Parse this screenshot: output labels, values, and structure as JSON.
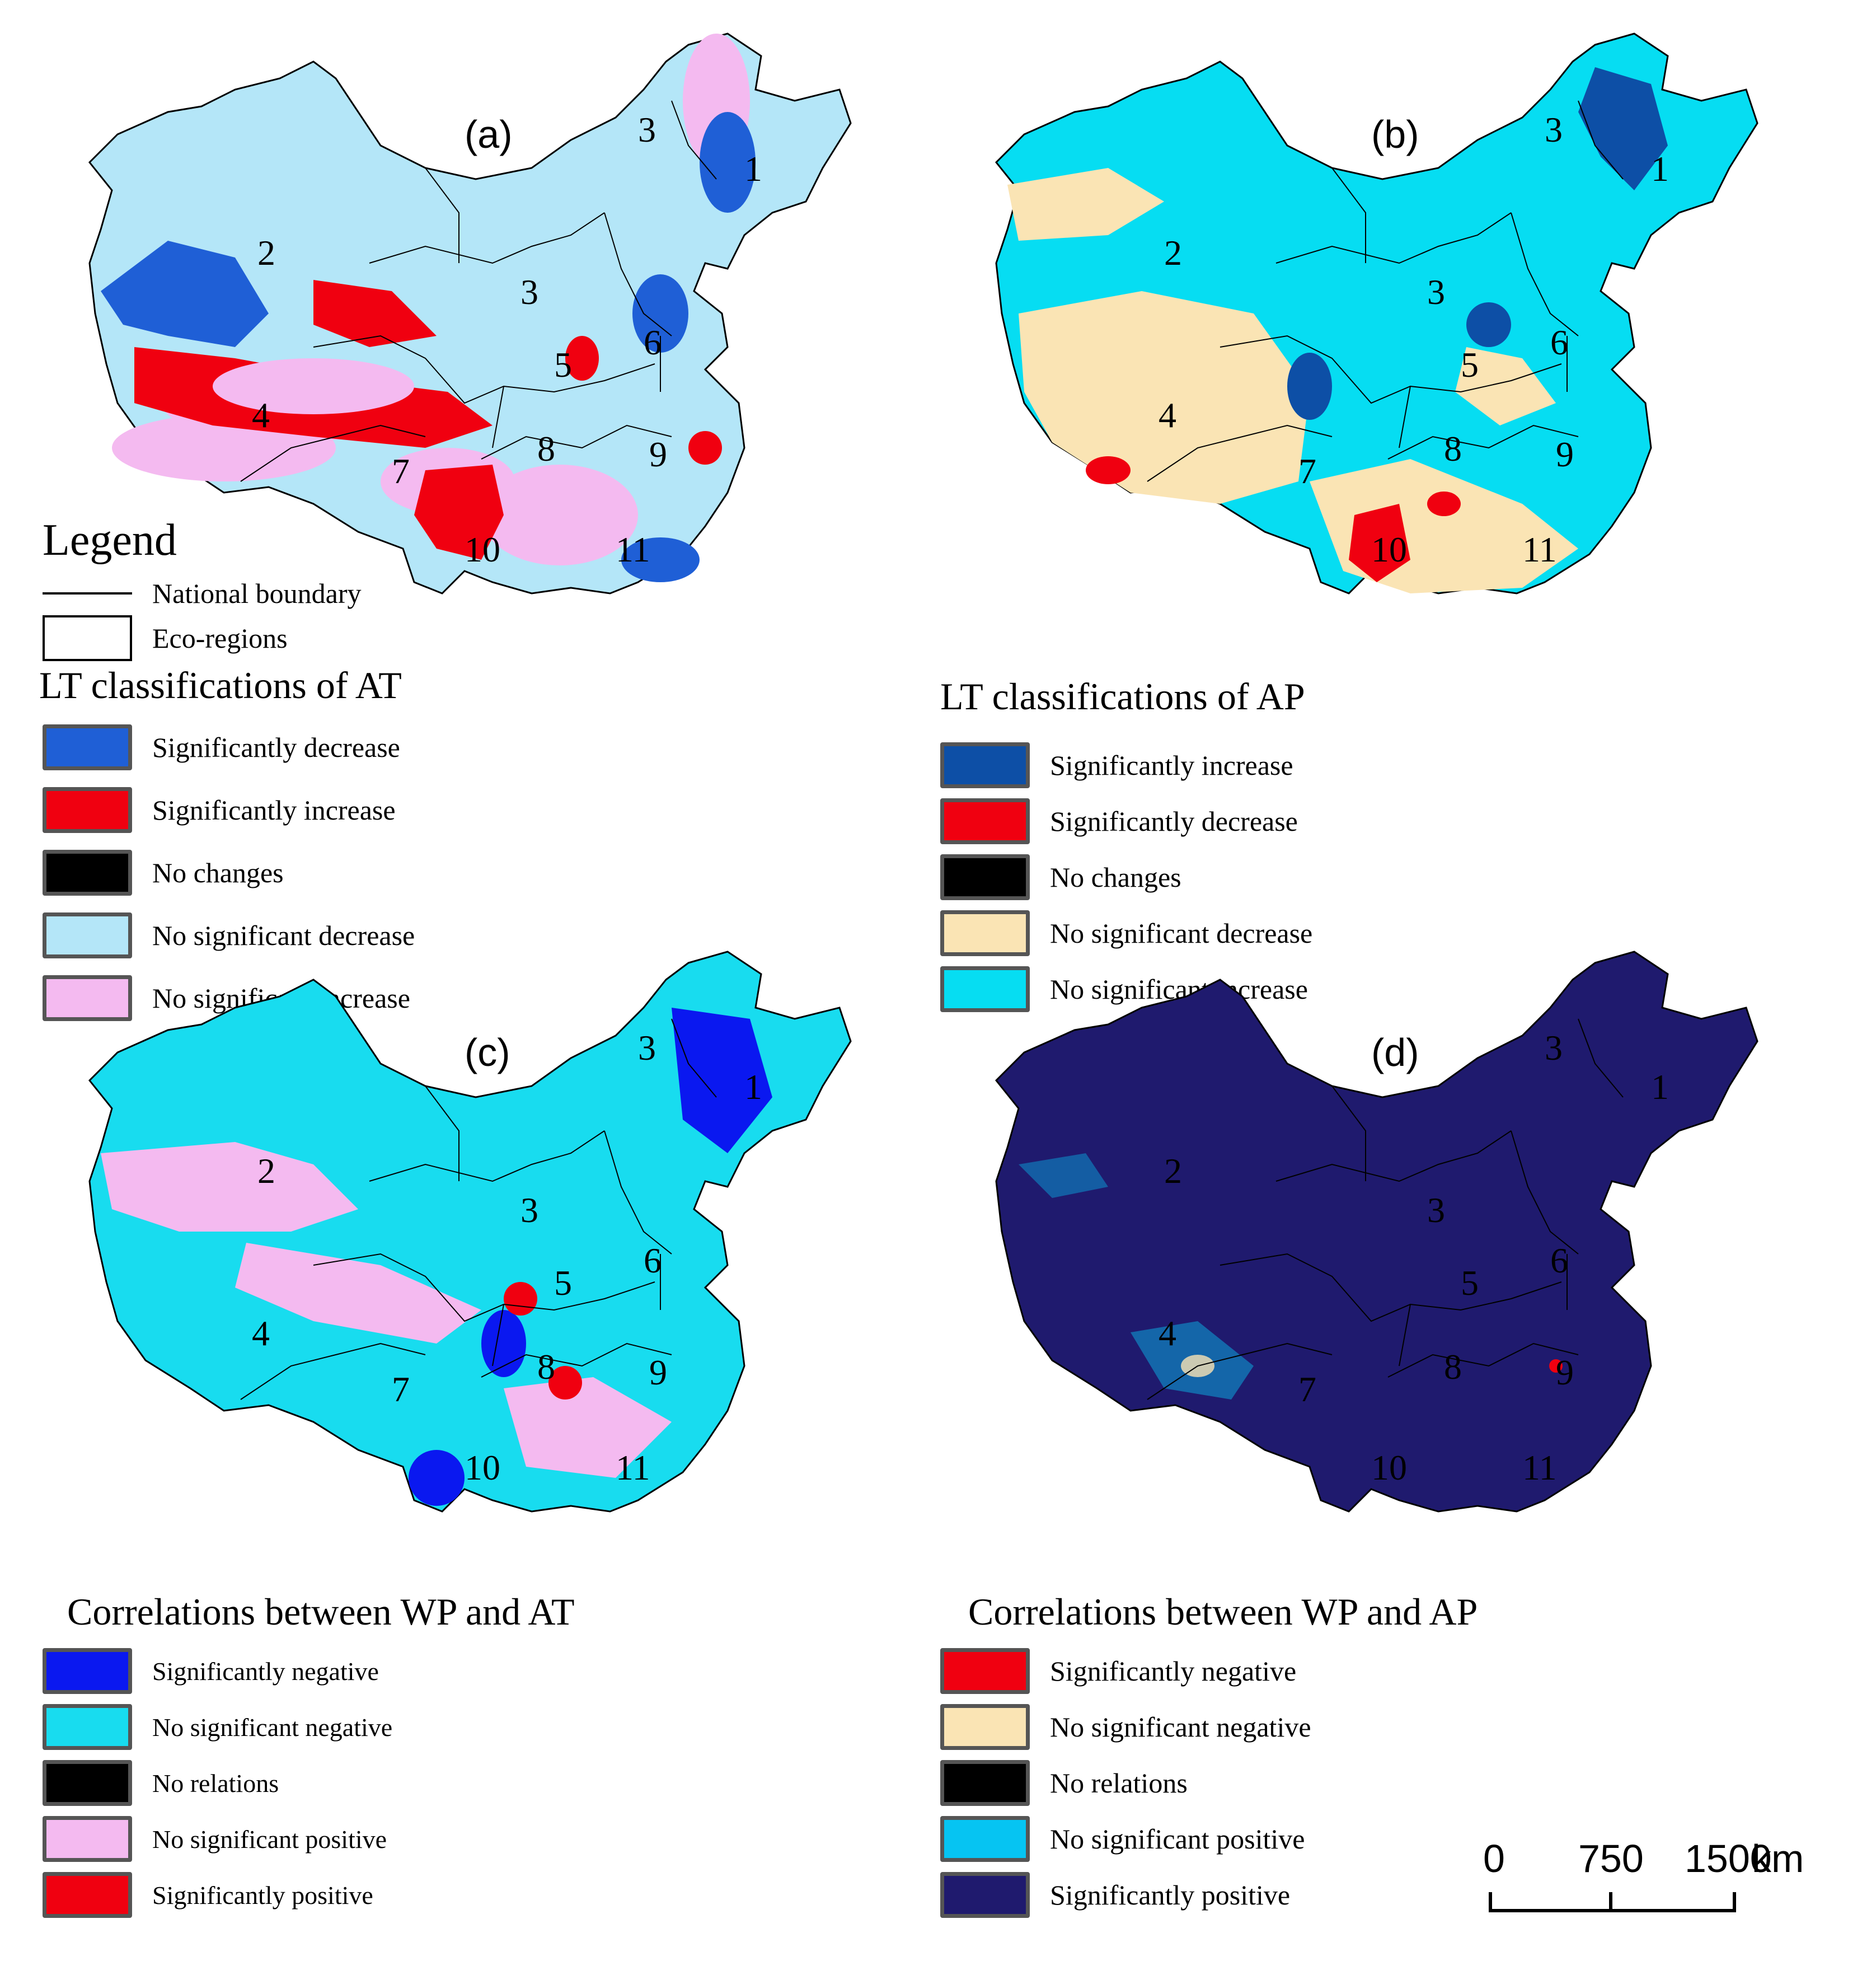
{
  "panels": [
    {
      "label": "(a)",
      "region_numbers": [
        "1",
        "2",
        "3",
        "3",
        "4",
        "5",
        "6",
        "7",
        "8",
        "9",
        "10",
        "11"
      ]
    },
    {
      "label": "(b)",
      "region_numbers": [
        "1",
        "2",
        "3",
        "3",
        "4",
        "5",
        "6",
        "7",
        "8",
        "9",
        "10",
        "11"
      ]
    },
    {
      "label": "(c)",
      "region_numbers": [
        "1",
        "2",
        "3",
        "3",
        "4",
        "5",
        "6",
        "7",
        "8",
        "9",
        "10",
        "11"
      ]
    },
    {
      "label": "(d)",
      "region_numbers": [
        "1",
        "2",
        "3",
        "3",
        "4",
        "5",
        "6",
        "7",
        "8",
        "9",
        "10",
        "11"
      ]
    }
  ],
  "legend_main": {
    "heading": "Legend",
    "boundary_items": [
      {
        "label": "National boundary",
        "symbol": "line"
      },
      {
        "label": "Eco-regions",
        "symbol": "box"
      }
    ]
  },
  "legends": {
    "a": {
      "title": "LT classifications of AT",
      "items": [
        {
          "label": "Significantly decrease",
          "color": "#1f5fd6"
        },
        {
          "label": "Significantly increase",
          "color": "#f00010"
        },
        {
          "label": "No changes",
          "color": "#000000"
        },
        {
          "label": "No significant decrease",
          "color": "#b4e6f8"
        },
        {
          "label": "No significant increase",
          "color": "#f4baf0"
        }
      ]
    },
    "b": {
      "title": "LT classifications of AP",
      "items": [
        {
          "label": "Significantly increase",
          "color": "#0d4fa6"
        },
        {
          "label": "Significantly decrease",
          "color": "#f00010"
        },
        {
          "label": "No changes",
          "color": "#000000"
        },
        {
          "label": "No significant decrease",
          "color": "#fae4b4"
        },
        {
          "label": "No significant increase",
          "color": "#06ddf2"
        }
      ]
    },
    "c": {
      "title": "Correlations between WP and AT",
      "items": [
        {
          "label": "Significantly negative",
          "color": "#0a18f0"
        },
        {
          "label": "No significant negative",
          "color": "#18dcef"
        },
        {
          "label": "No relations",
          "color": "#000000"
        },
        {
          "label": "No significant positive",
          "color": "#f4baf0"
        },
        {
          "label": "Significantly positive",
          "color": "#f00010"
        }
      ]
    },
    "d": {
      "title": "Correlations between WP and AP",
      "items": [
        {
          "label": "Significantly negative",
          "color": "#f00010"
        },
        {
          "label": "No significant negative",
          "color": "#fae4b4"
        },
        {
          "label": "No relations",
          "color": "#000000"
        },
        {
          "label": "No significant positive",
          "color": "#06c4f2"
        },
        {
          "label": "Significantly positive",
          "color": "#1f1a6e"
        }
      ]
    }
  },
  "scale_bar": {
    "ticks": [
      "0",
      "750",
      "1500"
    ],
    "unit": "km"
  }
}
